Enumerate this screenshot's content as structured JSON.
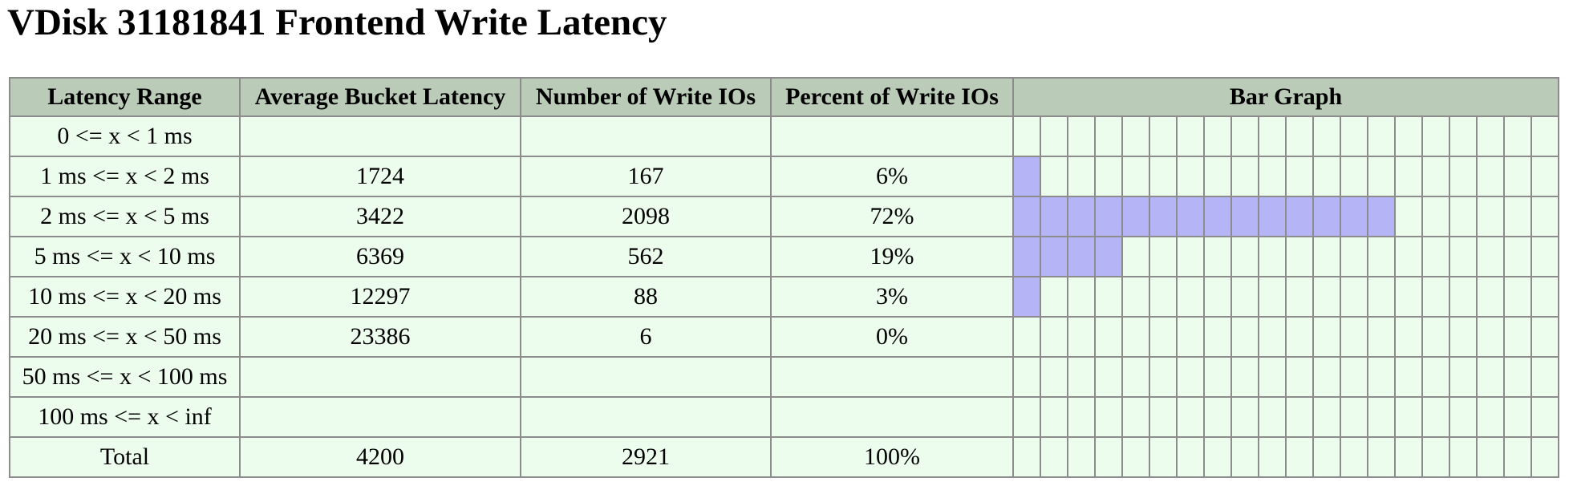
{
  "page": {
    "title": "VDisk 31181841 Frontend Write Latency"
  },
  "table": {
    "headers": [
      "Latency Range",
      "Average Bucket Latency",
      "Number of Write IOs",
      "Percent of Write IOs",
      "Bar Graph"
    ],
    "bar_segments": 20,
    "bar_fill_color": "#b4b4f6",
    "header_color": "#bacbb8",
    "row_color": "#edfded",
    "rows": [
      {
        "range": "0 <= x < 1 ms",
        "avg": "",
        "count": "",
        "percent": "",
        "bar_cells": 0
      },
      {
        "range": "1 ms <= x < 2 ms",
        "avg": "1724",
        "count": "167",
        "percent": "6%",
        "bar_cells": 1
      },
      {
        "range": "2 ms <= x < 5 ms",
        "avg": "3422",
        "count": "2098",
        "percent": "72%",
        "bar_cells": 14
      },
      {
        "range": "5 ms <= x < 10 ms",
        "avg": "6369",
        "count": "562",
        "percent": "19%",
        "bar_cells": 4
      },
      {
        "range": "10 ms <= x < 20 ms",
        "avg": "12297",
        "count": "88",
        "percent": "3%",
        "bar_cells": 1
      },
      {
        "range": "20 ms <= x < 50 ms",
        "avg": "23386",
        "count": "6",
        "percent": "0%",
        "bar_cells": 0
      },
      {
        "range": "50 ms <= x < 100 ms",
        "avg": "",
        "count": "",
        "percent": "",
        "bar_cells": 0
      },
      {
        "range": "100 ms <= x < inf",
        "avg": "",
        "count": "",
        "percent": "",
        "bar_cells": 0
      },
      {
        "range": "Total",
        "avg": "4200",
        "count": "2921",
        "percent": "100%",
        "bar_cells": 0
      }
    ]
  }
}
